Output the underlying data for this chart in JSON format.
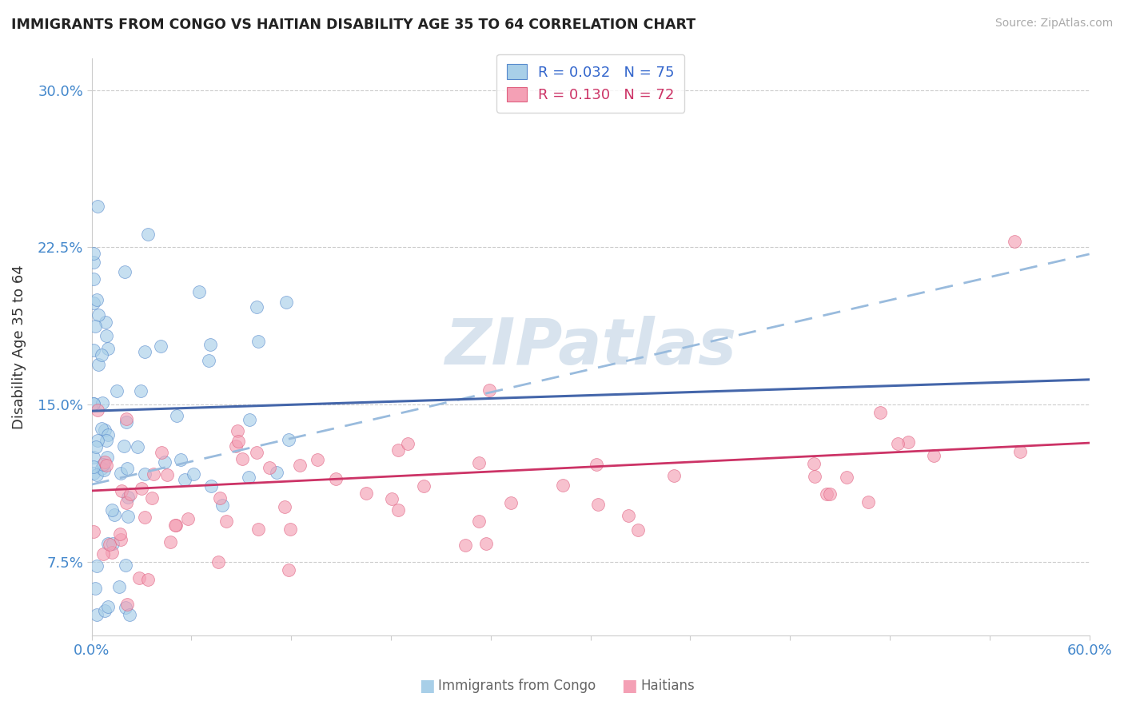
{
  "title": "IMMIGRANTS FROM CONGO VS HAITIAN DISABILITY AGE 35 TO 64 CORRELATION CHART",
  "source": "Source: ZipAtlas.com",
  "ylabel": "Disability Age 35 to 64",
  "xlim": [
    0.0,
    0.6
  ],
  "ylim": [
    0.04,
    0.315
  ],
  "yticks": [
    0.075,
    0.15,
    0.225,
    0.3
  ],
  "ytick_labels": [
    "7.5%",
    "15.0%",
    "22.5%",
    "30.0%"
  ],
  "xtick_labels": [
    "0.0%",
    "",
    "",
    "",
    "",
    "",
    "",
    "",
    "",
    "",
    "60.0%"
  ],
  "r_congo": 0.032,
  "n_congo": 75,
  "r_haitian": 0.13,
  "n_haitian": 72,
  "color_congo": "#a8cfe8",
  "color_haitian": "#f4a0b5",
  "edge_congo": "#5588cc",
  "edge_haitian": "#e06080",
  "trendline_congo_color": "#4466aa",
  "trendline_haitian_color": "#cc3366",
  "trendline_haitian_dashed_color": "#99bbdd",
  "watermark_color": "#c8d8e8",
  "watermark_alpha": 0.7,
  "legend_text_congo_color": "#3366cc",
  "legend_text_haitian_color": "#cc3366"
}
